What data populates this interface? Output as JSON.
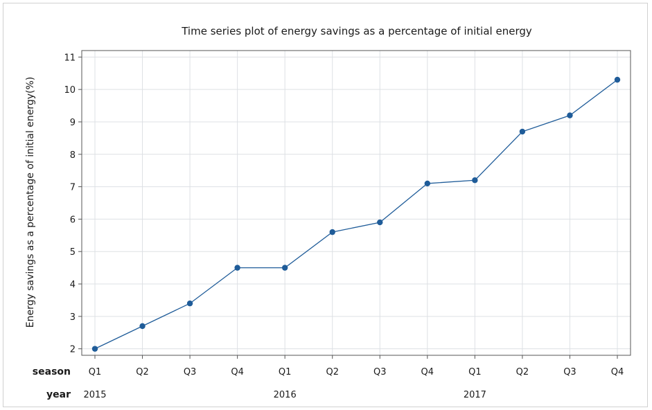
{
  "chart_data": {
    "type": "line",
    "title": "Time series plot of energy savings as a percentage of initial energy",
    "ylabel": "Energy savings as a percentage of initial energy(%)",
    "xlabel": "",
    "ylim": [
      1.8,
      11.2
    ],
    "yticks": [
      2,
      3,
      4,
      5,
      6,
      7,
      8,
      9,
      10,
      11
    ],
    "grid": true,
    "row_labels": {
      "season": "season",
      "year": "year"
    },
    "categories": [
      "Q1",
      "Q2",
      "Q3",
      "Q4",
      "Q1",
      "Q2",
      "Q3",
      "Q4",
      "Q1",
      "Q2",
      "Q3",
      "Q4"
    ],
    "years": [
      {
        "label": "2015",
        "index": 0
      },
      {
        "label": "2016",
        "index": 4
      },
      {
        "label": "2017",
        "index": 8
      }
    ],
    "series": [
      {
        "values": [
          2.0,
          2.7,
          3.4,
          4.5,
          4.5,
          5.6,
          5.9,
          7.1,
          7.2,
          8.7,
          9.2,
          10.3
        ],
        "color": "#1f5c99"
      }
    ],
    "colors": {
      "line": "#1f5c99",
      "grid": "#dde0e4",
      "axis": "#555555"
    }
  }
}
